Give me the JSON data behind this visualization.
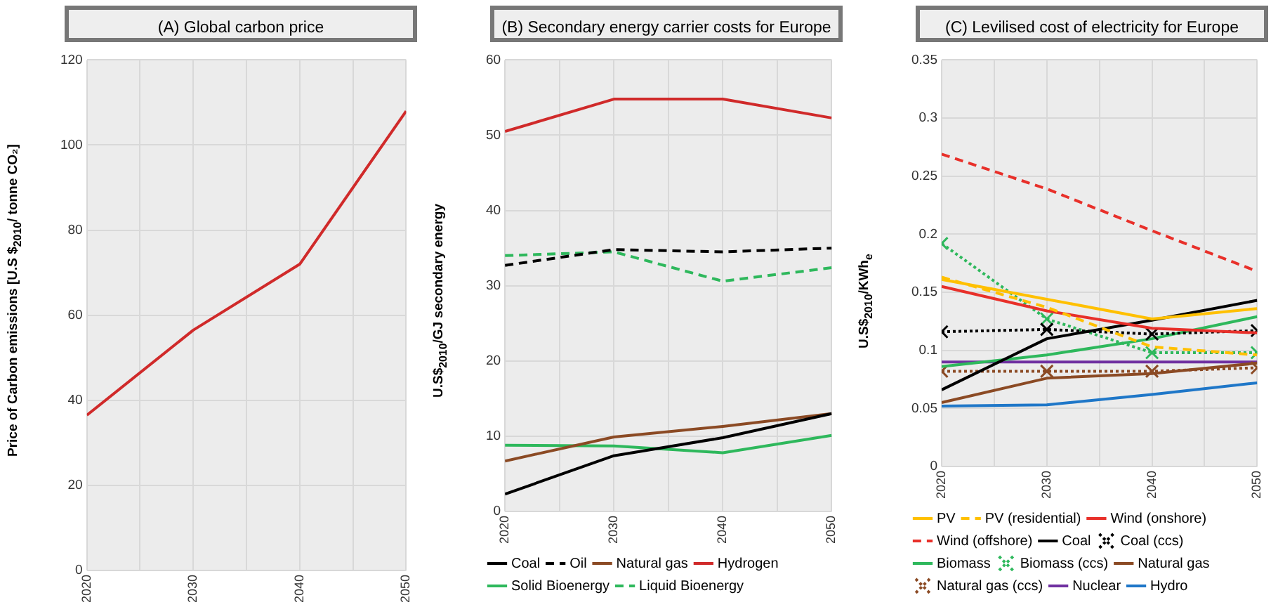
{
  "chart_data": [
    {
      "type": "line",
      "title": "(A)  Global carbon price",
      "ylabel": "Price of Carbon emissions [U.S $$_{2010}$/ tonne CO₂]",
      "x": [
        2020,
        2030,
        2040,
        2050
      ],
      "xlim": [
        2020,
        2050
      ],
      "xticks": [
        2020,
        {
          "value": 2025,
          "label": null
        },
        2030,
        {
          "value": 2035,
          "label": null
        },
        2040,
        {
          "value": 2045,
          "label": null
        },
        2050
      ],
      "ylim": [
        0,
        120
      ],
      "yticks": [
        0,
        20,
        40,
        60,
        80,
        100,
        120
      ],
      "grid": true,
      "legend": false,
      "marker": "none",
      "line_style": "solid",
      "series": [
        {
          "color": "#d02a2a",
          "values": [
            36.5,
            56.5,
            72,
            108
          ]
        }
      ]
    },
    {
      "type": "line",
      "title": "(B)   Secondary energy carrier costs for Europe",
      "ylabel": "U.S$$_{2010}$/GJ secondary energy",
      "x": [
        2020,
        2030,
        2040,
        2050
      ],
      "xlim": [
        2020,
        2050
      ],
      "xticks": [
        2020,
        {
          "value": 2025,
          "label": null
        },
        2030,
        {
          "value": 2035,
          "label": null
        },
        2040,
        {
          "value": 2045,
          "label": null
        },
        2050
      ],
      "ylim": [
        0,
        60
      ],
      "yticks": [
        0,
        10,
        20,
        30,
        40,
        50,
        60
      ],
      "grid": true,
      "legend": "bottom",
      "marker": "none",
      "line_style": "solid",
      "series": [
        {
          "name": "Coal",
          "color": "#000000",
          "values": [
            2.3,
            7.4,
            9.8,
            13
          ]
        },
        {
          "name": "Oil",
          "color": "#000000",
          "line_style": "dashed",
          "values": [
            32.7,
            34.8,
            34.5,
            35
          ]
        },
        {
          "name": "Natural gas",
          "color": "#8b4a24",
          "values": [
            6.7,
            9.9,
            11.3,
            13
          ]
        },
        {
          "name": "Hydrogen",
          "color": "#d02a2a",
          "values": [
            50.5,
            54.8,
            54.8,
            52.3
          ]
        },
        {
          "name": "Solid Bioenergy",
          "color": "#2eb85c",
          "values": [
            8.8,
            8.7,
            7.8,
            10.1
          ]
        },
        {
          "name": "Liquid Bioenergy",
          "color": "#2eb85c",
          "line_style": "dashed",
          "values": [
            34,
            34.5,
            30.6,
            32.4
          ]
        }
      ]
    },
    {
      "type": "line",
      "title": "(C)      Levilised cost of electricity for Europe",
      "ylabel": "U.S$$_{2010}$/KWh$_{e}$",
      "x": [
        2020,
        2030,
        2040,
        2050
      ],
      "xlim": [
        2020,
        2050
      ],
      "xticks": [
        2020,
        {
          "value": 2025,
          "label": null
        },
        2030,
        {
          "value": 2035,
          "label": null
        },
        2040,
        {
          "value": 2045,
          "label": null
        },
        2050
      ],
      "ylim": [
        0,
        0.35
      ],
      "yticks": [
        0,
        0.05,
        0.1,
        0.15,
        0.2,
        0.25,
        0.3,
        0.35
      ],
      "grid": true,
      "legend": "bottom",
      "marker": "none",
      "line_style": "solid",
      "series": [
        {
          "name": "PV",
          "color": "#ffc000",
          "values": [
            0.161,
            0.144,
            0.127,
            0.136
          ]
        },
        {
          "name": "PV (residential)",
          "color": "#ffc000",
          "line_style": "dashed",
          "values": [
            0.163,
            0.137,
            0.103,
            0.096
          ]
        },
        {
          "name": "Wind (onshore)",
          "color": "#e8302a",
          "values": [
            0.155,
            0.134,
            0.119,
            0.115
          ]
        },
        {
          "name": "Wind (offshore)",
          "color": "#e8302a",
          "line_style": "dashed",
          "values": [
            0.269,
            0.239,
            0.203,
            0.168
          ]
        },
        {
          "name": "Coal",
          "color": "#000000",
          "values": [
            0.066,
            0.11,
            0.126,
            0.143
          ]
        },
        {
          "name": "Coal (ccs)",
          "color": "#000000",
          "line_style": "dotted",
          "marker": "cross",
          "values": [
            0.116,
            0.118,
            0.114,
            0.117
          ]
        },
        {
          "name": "Biomass",
          "color": "#2eb85c",
          "values": [
            0.086,
            0.096,
            0.11,
            0.129
          ]
        },
        {
          "name": "Biomass (ccs)",
          "color": "#2eb85c",
          "line_style": "dotted",
          "marker": "cross",
          "values": [
            0.192,
            0.127,
            0.098,
            0.098
          ]
        },
        {
          "name": "Natural gas",
          "color": "#8b4a24",
          "values": [
            0.055,
            0.076,
            0.08,
            0.089
          ]
        },
        {
          "name": "Natural gas (ccs)",
          "color": "#8b4a24",
          "line_style": "dotted",
          "marker": "cross",
          "values": [
            0.082,
            0.082,
            0.082,
            0.085
          ]
        },
        {
          "name": "Nuclear",
          "color": "#7030a0",
          "values": [
            0.09,
            0.09,
            0.09,
            0.09
          ]
        },
        {
          "name": "Hydro",
          "color": "#1f77c8",
          "values": [
            0.052,
            0.053,
            0.062,
            0.072
          ]
        }
      ]
    }
  ]
}
